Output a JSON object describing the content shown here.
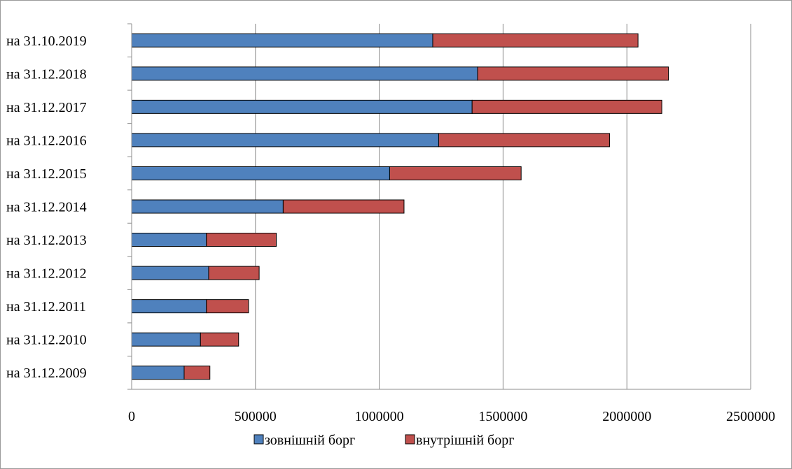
{
  "chart_data": {
    "type": "bar",
    "orientation": "horizontal",
    "stacked": true,
    "categories": [
      "на 31.12.2009",
      "на 31.12.2010",
      "на 31.12.2011",
      "на 31.12.2012",
      "на 31.12.2013",
      "на 31.12.2014",
      "на 31.12.2015",
      "на 31.12.2016",
      "на 31.12.2017",
      "на 31.12.2018",
      "на 31.10.2019"
    ],
    "series": [
      {
        "name": "зовнішній борг",
        "color": "#4f81bd",
        "values": [
          212000,
          278000,
          302000,
          311000,
          302000,
          612000,
          1042000,
          1240000,
          1375000,
          1397000,
          1216000
        ]
      },
      {
        "name": "внутрішній борг",
        "color": "#c0504d",
        "values": [
          104000,
          154000,
          170000,
          204000,
          282000,
          488000,
          531000,
          690000,
          766000,
          771000,
          829000
        ]
      }
    ],
    "x_ticks": [
      "0",
      "500000",
      "1000000",
      "1500000",
      "2000000",
      "2500000"
    ],
    "xlim": [
      0,
      2500000
    ],
    "grid": "vertical",
    "legend_position": "bottom"
  }
}
